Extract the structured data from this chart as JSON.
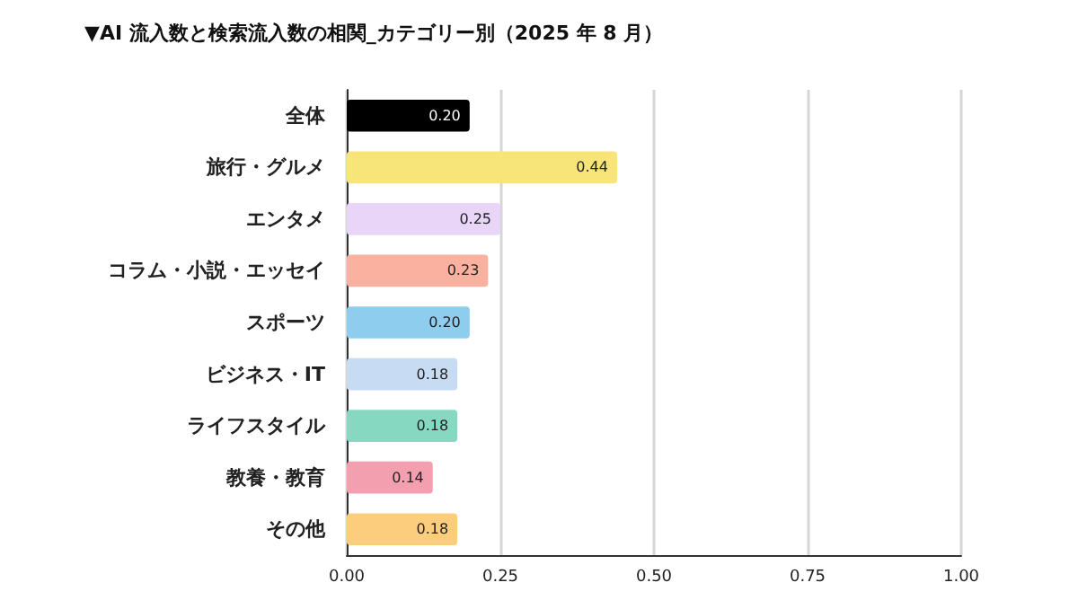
{
  "chart_data": {
    "type": "bar",
    "orientation": "horizontal",
    "title": "▼AI 流入数と検索流入数の相関_カテゴリー別（2025 年 8 月）",
    "categories": [
      "全体",
      "旅行・グルメ",
      "エンタメ",
      "コラム・小説・エッセイ",
      "スポーツ",
      "ビジネス・IT",
      "ライフスタイル",
      "教養・教育",
      "その他"
    ],
    "values": [
      0.2,
      0.44,
      0.25,
      0.23,
      0.2,
      0.18,
      0.18,
      0.14,
      0.18
    ],
    "colors": [
      "#000000",
      "#f7e57a",
      "#e8d5f8",
      "#fbb1a0",
      "#8fcdef",
      "#c7dbf3",
      "#86d8c0",
      "#f49fb0",
      "#fdcd7e"
    ],
    "xlim": [
      0,
      1
    ],
    "xticks": [
      {
        "value": 0,
        "label": "0.00"
      },
      {
        "value": 0.25,
        "label": "0.25"
      },
      {
        "value": 0.5,
        "label": "0.50"
      },
      {
        "value": 0.75,
        "label": "0.75"
      },
      {
        "value": 1,
        "label": "1.00"
      }
    ],
    "value_labels": [
      "0.20",
      "0.44",
      "0.25",
      "0.23",
      "0.20",
      "0.18",
      "0.18",
      "0.14",
      "0.18"
    ],
    "grid": "x"
  }
}
